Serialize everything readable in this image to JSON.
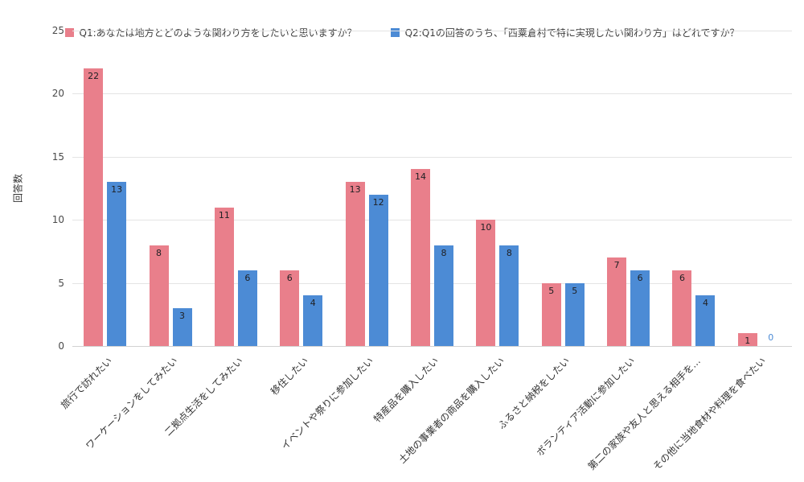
{
  "chart_data": {
    "type": "bar",
    "title": "",
    "ylabel": "回答数",
    "xlabel": "",
    "ylim": [
      0,
      25
    ],
    "yticks": [
      0,
      5,
      10,
      15,
      20,
      25
    ],
    "grid": true,
    "legend_position": "top",
    "categories": [
      "旅行で訪れたい",
      "ワーケーションをしてみたい",
      "二拠点生活をしてみたい",
      "移住したい",
      "イベントや祭りに参加したい",
      "特産品を購入したい",
      "土地の事業者の商品を購入したい",
      "ふるさと納税をしたい",
      "ボランティア活動に参加したい",
      "第二の家族や友人と思える相手を…",
      "その他に当地食材や料理を食べたい"
    ],
    "series": [
      {
        "name": "Q1:あなたは地方とどのような関わり方をしたいと思いますか？",
        "color": "#e97f8b",
        "values": [
          22,
          8,
          11,
          6,
          13,
          14,
          10,
          5,
          7,
          6,
          1
        ]
      },
      {
        "name": "Q2:Q1の回答のうち、「西粟倉村で特に実現したい関わり方」はどれですか？",
        "color": "#4c8bd5",
        "values": [
          13,
          3,
          6,
          4,
          12,
          8,
          8,
          5,
          6,
          4,
          0
        ]
      }
    ],
    "value_label_color": "#202124",
    "grid_color": "#e4e4e4",
    "background_color": "#ffffff"
  }
}
